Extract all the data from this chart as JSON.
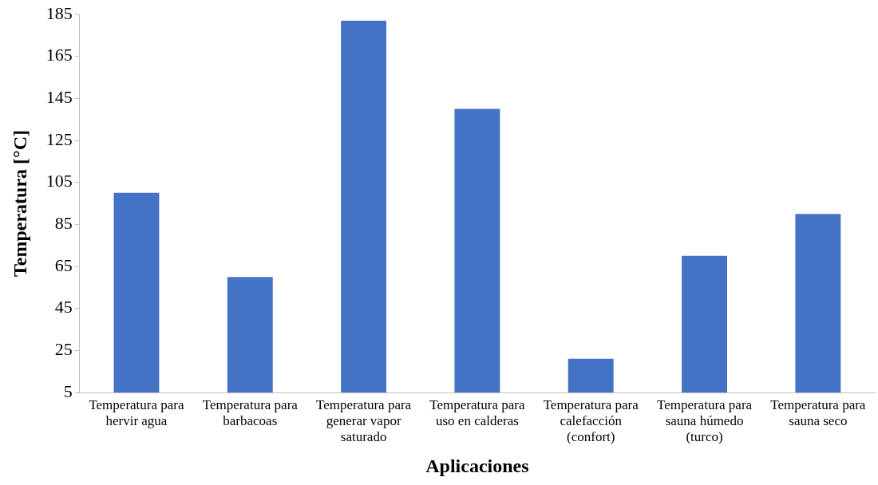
{
  "chart_data": {
    "type": "bar",
    "xlabel": "Aplicaciones",
    "ylabel": "Temperatura [°C]",
    "categories": [
      "Temperatura para hervir agua",
      "Temperatura para barbacoas",
      "Temperatura para generar vapor saturado",
      "Temperatura para uso en calderas",
      "Temperatura para calefacción (confort)",
      "Temperatura para sauna húmedo (turco)",
      "Temperatura para sauna seco"
    ],
    "values": [
      100,
      60,
      182,
      140,
      21,
      70,
      90
    ],
    "color": "#4472c4",
    "ylim": [
      5,
      185
    ],
    "yticks": [
      5,
      25,
      45,
      65,
      85,
      105,
      125,
      145,
      165,
      185
    ],
    "grid": false,
    "legend": false
  }
}
